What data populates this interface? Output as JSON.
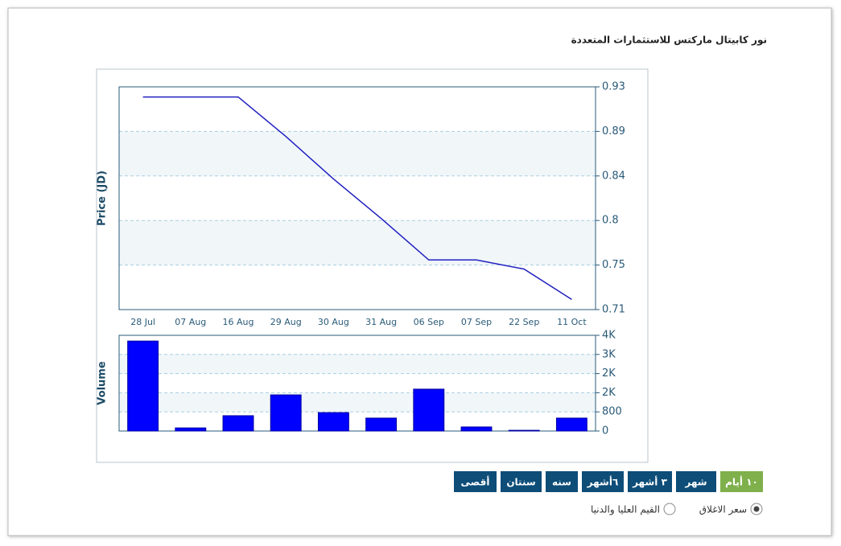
{
  "header": {
    "title": "نور كابيتال ماركتس للاستثمارات المتعددة"
  },
  "chart_data": [
    {
      "type": "line",
      "y_label": "Price (JD)",
      "categories": [
        "28 Jul",
        "07 Aug",
        "16 Aug",
        "29 Aug",
        "30 Aug",
        "31 Aug",
        "06 Sep",
        "07 Sep",
        "22 Sep",
        "11 Oct"
      ],
      "values": [
        0.92,
        0.92,
        0.92,
        0.881,
        0.839,
        0.8,
        0.759,
        0.759,
        0.75,
        0.72
      ],
      "color": "#2020c0",
      "ylim": [
        0.71,
        0.93
      ],
      "yticks": [
        0.71,
        {
          "value": 0.754,
          "label": "0.75"
        },
        {
          "value": 0.798,
          "label": "0.8"
        },
        {
          "value": 0.842,
          "label": "0.84"
        },
        {
          "value": 0.886,
          "label": "0.89"
        },
        0.93
      ],
      "grid": true
    },
    {
      "type": "bar",
      "y_label": "Volume",
      "values": [
        3760,
        130,
        640,
        1510,
        770,
        540,
        1750,
        170,
        30,
        540
      ],
      "color": "#0000ff",
      "ylim": [
        0,
        4000
      ],
      "yticks": [
        0,
        800,
        {
          "value": 1600,
          "label": "2K"
        },
        {
          "value": 2400,
          "label": "2K"
        },
        {
          "value": 3200,
          "label": "3K"
        },
        {
          "value": 4000,
          "label": "4K"
        }
      ],
      "grid": true
    }
  ],
  "range_buttons": [
    "١٠ أيام",
    "شهر",
    "٣ أشهر",
    "٦أشهر",
    "سنه",
    "سنتان",
    "أقصى"
  ],
  "active_button": 0,
  "chart_options": [
    "سعر الاغلاق",
    "القيم العليا والدنيا"
  ],
  "checked_option": 0
}
